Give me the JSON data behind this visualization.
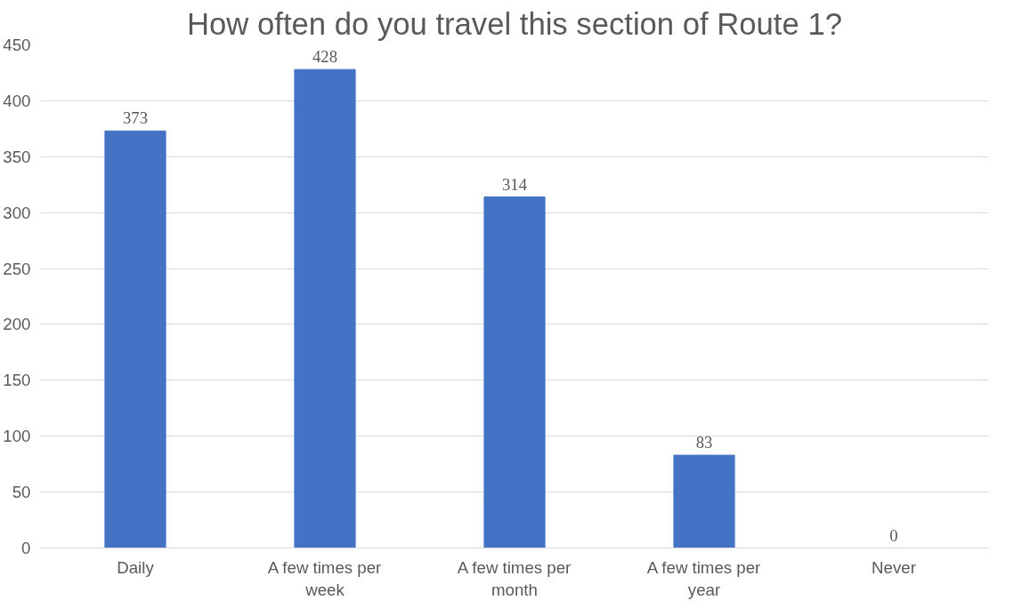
{
  "chart_data": {
    "type": "bar",
    "title": "How often do you travel this section of Route 1?",
    "categories": [
      "Daily",
      "A few times per week",
      "A few times per month",
      "A few times per year",
      "Never"
    ],
    "values": [
      373,
      428,
      314,
      83,
      0
    ],
    "color": "#4472c4",
    "ylim": [
      0,
      450
    ],
    "yticks": [
      0,
      50,
      100,
      150,
      200,
      250,
      300,
      350,
      400,
      450
    ],
    "grid": "y",
    "data_labels": true
  }
}
